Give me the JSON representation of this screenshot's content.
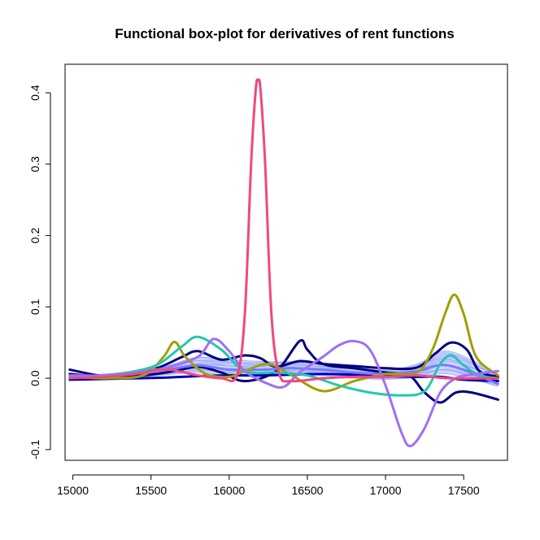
{
  "chart_data": {
    "type": "line",
    "title": "Functional box-plot for derivatives of rent functions",
    "xlabel": "",
    "ylabel": "",
    "xlim": [
      14950,
      17780
    ],
    "ylim": [
      -0.115,
      0.44
    ],
    "x_ticks": [
      15000,
      15500,
      16000,
      16500,
      17000,
      17500
    ],
    "x_tick_labels": [
      "15000",
      "15500",
      "16000",
      "16500",
      "17000",
      "17500"
    ],
    "y_ticks": [
      -0.1,
      0.0,
      0.1,
      0.2,
      0.3,
      0.4
    ],
    "y_tick_labels": [
      "-0.1",
      "0.0",
      "0.1",
      "0.2",
      "0.3",
      "0.4"
    ],
    "grid": false,
    "legend": "none",
    "envelope": {
      "name": "",
      "color": "#c8d0ff",
      "x": [
        14980,
        15200,
        15400,
        15600,
        15800,
        16000,
        16200,
        16400,
        16600,
        16800,
        17000,
        17200,
        17400,
        17720
      ],
      "upper": [
        0.004,
        0.006,
        0.01,
        0.018,
        0.03,
        0.026,
        0.024,
        0.024,
        0.02,
        0.015,
        0.012,
        0.02,
        0.038,
        0.006
      ],
      "lower": [
        -0.001,
        0.0,
        0.002,
        0.004,
        0.008,
        0.004,
        0.002,
        0.004,
        0.004,
        0.0,
        -0.002,
        0.0,
        0.006,
        -0.012
      ]
    },
    "series": [
      {
        "name": "",
        "color": "#0000b0",
        "width": 3,
        "x": [
          14980,
          15200,
          15400,
          15600,
          15800,
          16000,
          16200,
          16400,
          16600,
          16800,
          17000,
          17200,
          17350,
          17500,
          17720
        ],
        "y": [
          -0.002,
          -0.001,
          0.0,
          0.001,
          0.003,
          0.004,
          0.004,
          0.005,
          0.006,
          0.005,
          0.003,
          0.002,
          0.002,
          -0.002,
          -0.004
        ]
      },
      {
        "name": "",
        "color": "#000080",
        "width": 3,
        "x": [
          14980,
          15200,
          15400,
          15550,
          15700,
          15800,
          15950,
          16100,
          16200,
          16300,
          16450,
          16600,
          16800,
          17000,
          17200,
          17320,
          17420,
          17520,
          17600,
          17720
        ],
        "y": [
          0.012,
          0.003,
          0.006,
          0.015,
          0.03,
          0.038,
          0.026,
          0.032,
          0.028,
          0.016,
          0.024,
          0.02,
          0.017,
          0.014,
          0.015,
          0.035,
          0.05,
          0.04,
          0.01,
          0.002
        ]
      },
      {
        "name": "",
        "color": "#000080",
        "width": 3,
        "x": [
          14980,
          15200,
          15450,
          15650,
          15800,
          15950,
          16100,
          16300,
          16450,
          16500,
          16600,
          16800,
          17000,
          17150,
          17250,
          17350,
          17450,
          17550,
          17720
        ],
        "y": [
          0.006,
          0.002,
          0.004,
          0.01,
          0.016,
          0.008,
          -0.004,
          0.01,
          0.052,
          0.04,
          0.02,
          0.014,
          0.008,
          0.004,
          -0.02,
          -0.034,
          -0.02,
          -0.02,
          -0.03
        ]
      },
      {
        "name": "",
        "color": "#7878ff",
        "width": 3,
        "x": [
          14980,
          15200,
          15400,
          15600,
          15800,
          16000,
          16200,
          16400,
          16600,
          16800,
          17000,
          17200,
          17400,
          17720
        ],
        "y": [
          0.002,
          0.003,
          0.008,
          0.012,
          0.018,
          0.012,
          0.012,
          0.014,
          0.012,
          0.008,
          0.006,
          0.01,
          0.018,
          -0.008
        ]
      },
      {
        "name": "",
        "color": "#a0a000",
        "width": 3,
        "x": [
          14980,
          15200,
          15450,
          15580,
          15650,
          15720,
          15850,
          16000,
          16100,
          16250,
          16400,
          16600,
          16800,
          17000,
          17200,
          17300,
          17380,
          17440,
          17500,
          17580,
          17720
        ],
        "y": [
          0.002,
          0.0,
          0.004,
          0.03,
          0.051,
          0.03,
          0.006,
          0.002,
          0.01,
          0.02,
          0.004,
          -0.018,
          -0.004,
          0.006,
          0.008,
          0.04,
          0.09,
          0.117,
          0.09,
          0.03,
          0.004
        ]
      },
      {
        "name": "",
        "color": "#20c8b0",
        "width": 3,
        "x": [
          14980,
          15200,
          15400,
          15550,
          15700,
          15800,
          15950,
          16100,
          16300,
          16500,
          16700,
          16900,
          17100,
          17250,
          17350,
          17420,
          17500,
          17600,
          17720
        ],
        "y": [
          0.001,
          0.004,
          0.01,
          0.02,
          0.045,
          0.058,
          0.04,
          0.01,
          0.008,
          0.004,
          -0.01,
          -0.02,
          -0.024,
          -0.018,
          0.02,
          0.032,
          0.018,
          0.004,
          0.0
        ]
      },
      {
        "name": "",
        "color": "#a070f0",
        "width": 3,
        "x": [
          14980,
          15200,
          15400,
          15600,
          15800,
          15900,
          16000,
          16100,
          16250,
          16350,
          16450,
          16600,
          16700,
          16800,
          16900,
          17000,
          17100,
          17160,
          17250,
          17350,
          17450,
          17550,
          17720
        ],
        "y": [
          0.004,
          0.004,
          0.008,
          0.015,
          0.03,
          0.055,
          0.038,
          0.01,
          -0.008,
          -0.012,
          0.008,
          0.03,
          0.046,
          0.052,
          0.04,
          -0.01,
          -0.075,
          -0.095,
          -0.07,
          -0.02,
          0.0,
          0.005,
          0.01
        ]
      },
      {
        "name": "",
        "color": "#f04880",
        "width": 3,
        "x": [
          14980,
          15200,
          15400,
          15600,
          15800,
          15950,
          16050,
          16100,
          16140,
          16170,
          16185,
          16200,
          16230,
          16270,
          16320,
          16400,
          16600,
          16800,
          17000,
          17200,
          17400,
          17720
        ],
        "y": [
          0.0,
          0.002,
          0.006,
          0.012,
          0.004,
          0.0,
          0.004,
          0.09,
          0.3,
          0.405,
          0.417,
          0.405,
          0.3,
          0.09,
          0.006,
          -0.004,
          0.0,
          0.002,
          0.002,
          0.004,
          0.0,
          0.0
        ]
      }
    ]
  }
}
